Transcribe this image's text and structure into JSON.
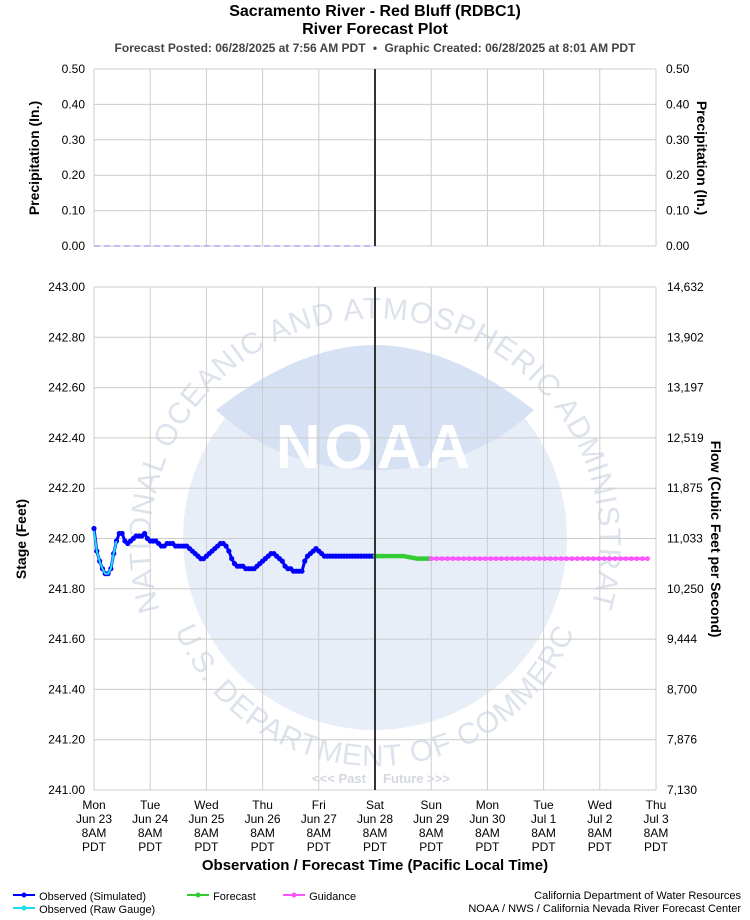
{
  "header": {
    "title": "Sacramento River - Red Bluff (RDBC1)",
    "subtitle": "River Forecast Plot",
    "posted_label": "Forecast Posted: 06/28/2025 at 7:56 AM PDT",
    "separator": "•",
    "created_label": "Graphic Created: 06/28/2025 at 8:01 AM PDT"
  },
  "colors": {
    "observed_simulated": "#0000ff",
    "observed_raw": "#22ddee",
    "forecast": "#33cc33",
    "guidance": "#ff55ff",
    "grid": "#cccccc",
    "now_line": "#333333",
    "precip": "#aaaaee",
    "watermark": "#e8eef8"
  },
  "watermark": {
    "logo_text": "NOAA",
    "ring_top": "NATIONAL OCEANIC AND ATMOSPHERIC ADMINISTRATION",
    "ring_bottom": "U.S. DEPARTMENT OF COMMERCE"
  },
  "past_future": {
    "past": "<<< Past",
    "future": "Future >>>"
  },
  "chart_data": [
    {
      "type": "line",
      "name": "precipitation",
      "ylabel": "Precipitation (In.)",
      "ylabel_right": "Precipitation (In.)",
      "ylim": [
        0,
        0.5
      ],
      "yticks": [
        "0.50",
        "0.40",
        "0.30",
        "0.20",
        "0.10",
        "0.00"
      ],
      "ytick_values": [
        0.5,
        0.4,
        0.3,
        0.2,
        0.1,
        0.0
      ],
      "xlim_days": [
        0,
        10
      ],
      "now_day": 5,
      "series": [
        {
          "x_days": [
            0,
            5
          ],
          "values": [
            0,
            0
          ],
          "style": "dashed"
        }
      ]
    },
    {
      "type": "line",
      "name": "stage",
      "ylabel": "Stage (Feet)",
      "ylabel_right": "Flow (Cubic Feet per Second)",
      "xlabel": "Observation / Forecast Time (Pacific Local Time)",
      "ylim": [
        241.0,
        243.0
      ],
      "yticks": [
        "243.00",
        "242.80",
        "242.60",
        "242.40",
        "242.20",
        "242.00",
        "241.80",
        "241.60",
        "241.40",
        "241.20",
        "241.00"
      ],
      "ytick_values": [
        243.0,
        242.8,
        242.6,
        242.4,
        242.2,
        242.0,
        241.8,
        241.6,
        241.4,
        241.2,
        241.0
      ],
      "yticks_right": [
        "14,632",
        "13,902",
        "13,197",
        "12,519",
        "11,875",
        "11,033",
        "10,250",
        "9,444",
        "8,700",
        "7,876",
        "7,130"
      ],
      "x_ticks": [
        [
          "Mon",
          "Jun 23",
          "8AM",
          "PDT"
        ],
        [
          "Tue",
          "Jun 24",
          "8AM",
          "PDT"
        ],
        [
          "Wed",
          "Jun 25",
          "8AM",
          "PDT"
        ],
        [
          "Thu",
          "Jun 26",
          "8AM",
          "PDT"
        ],
        [
          "Fri",
          "Jun 27",
          "8AM",
          "PDT"
        ],
        [
          "Sat",
          "Jun 28",
          "8AM",
          "PDT"
        ],
        [
          "Sun",
          "Jun 29",
          "8AM",
          "PDT"
        ],
        [
          "Mon",
          "Jun 30",
          "8AM",
          "PDT"
        ],
        [
          "Tue",
          "Jul 1",
          "8AM",
          "PDT"
        ],
        [
          "Wed",
          "Jul 2",
          "8AM",
          "PDT"
        ],
        [
          "Thu",
          "Jul 3",
          "8AM",
          "PDT"
        ]
      ],
      "xlim_days": [
        0,
        10
      ],
      "now_day": 5,
      "series": [
        {
          "name": "Observed (Simulated)",
          "color_key": "observed_simulated",
          "x_days": [
            0.0,
            0.05,
            0.1,
            0.15,
            0.2,
            0.25,
            0.3,
            0.35,
            0.4,
            0.45,
            0.5,
            0.55,
            0.6,
            0.65,
            0.7,
            0.75,
            0.8,
            0.85,
            0.9,
            0.95,
            1.0,
            1.05,
            1.1,
            1.15,
            1.2,
            1.25,
            1.3,
            1.35,
            1.4,
            1.45,
            1.5,
            1.55,
            1.6,
            1.65,
            1.7,
            1.75,
            1.8,
            1.85,
            1.9,
            1.95,
            2.0,
            2.05,
            2.1,
            2.15,
            2.2,
            2.25,
            2.3,
            2.35,
            2.4,
            2.45,
            2.5,
            2.55,
            2.6,
            2.65,
            2.7,
            2.75,
            2.8,
            2.85,
            2.9,
            2.95,
            3.0,
            3.05,
            3.1,
            3.15,
            3.2,
            3.25,
            3.3,
            3.35,
            3.4,
            3.45,
            3.5,
            3.55,
            3.6,
            3.65,
            3.7,
            3.75,
            3.8,
            3.85,
            3.9,
            3.95,
            4.0,
            4.05,
            4.1,
            4.15,
            4.2,
            4.25,
            4.3,
            4.35,
            4.4,
            4.45,
            4.5,
            4.55,
            4.6,
            4.65,
            4.7,
            4.75,
            4.8,
            4.85,
            4.9,
            4.95,
            5.0
          ],
          "values": [
            242.04,
            241.95,
            241.91,
            241.88,
            241.86,
            241.86,
            241.88,
            241.94,
            241.99,
            242.02,
            242.02,
            241.99,
            241.98,
            241.99,
            242.0,
            242.01,
            242.01,
            242.01,
            242.02,
            242.0,
            241.99,
            241.99,
            241.99,
            241.98,
            241.97,
            241.97,
            241.98,
            241.98,
            241.98,
            241.97,
            241.97,
            241.97,
            241.97,
            241.97,
            241.96,
            241.95,
            241.94,
            241.93,
            241.92,
            241.92,
            241.93,
            241.94,
            241.95,
            241.96,
            241.97,
            241.98,
            241.98,
            241.97,
            241.95,
            241.92,
            241.9,
            241.89,
            241.89,
            241.89,
            241.88,
            241.88,
            241.88,
            241.88,
            241.89,
            241.9,
            241.91,
            241.92,
            241.93,
            241.94,
            241.94,
            241.93,
            241.92,
            241.91,
            241.89,
            241.88,
            241.88,
            241.87,
            241.87,
            241.87,
            241.87,
            241.91,
            241.93,
            241.94,
            241.95,
            241.96,
            241.95,
            241.94,
            241.93,
            241.93,
            241.93,
            241.93,
            241.93,
            241.93,
            241.93,
            241.93,
            241.93,
            241.93,
            241.93,
            241.93,
            241.93,
            241.93,
            241.93,
            241.93,
            241.93,
            241.93,
            241.93
          ]
        },
        {
          "name": "Observed (Raw Gauge)",
          "color_key": "observed_raw",
          "x_days": [
            0.0,
            0.05,
            0.1,
            0.15,
            0.2,
            0.25,
            0.3,
            0.35,
            0.4
          ],
          "values": [
            242.03,
            241.95,
            241.91,
            241.88,
            241.86,
            241.86,
            241.88,
            241.94,
            241.99
          ]
        },
        {
          "name": "Forecast",
          "color_key": "forecast",
          "x_days": [
            5.0,
            5.25,
            5.5,
            5.75,
            6.0
          ],
          "values": [
            241.93,
            241.93,
            241.93,
            241.92,
            241.92
          ]
        },
        {
          "name": "Guidance",
          "color_key": "guidance",
          "x_days": [
            6.0,
            7.0,
            8.0,
            9.0,
            9.85
          ],
          "values": [
            241.92,
            241.92,
            241.92,
            241.92,
            241.92
          ]
        }
      ]
    }
  ],
  "legend": {
    "observed_simulated": "Observed (Simulated)",
    "observed_raw": "Observed (Raw Gauge)",
    "forecast": "Forecast",
    "guidance": "Guidance"
  },
  "credits": {
    "line1": "California Department of Water Resources",
    "line2": "NOAA / NWS / California Nevada River Forecast Center"
  }
}
